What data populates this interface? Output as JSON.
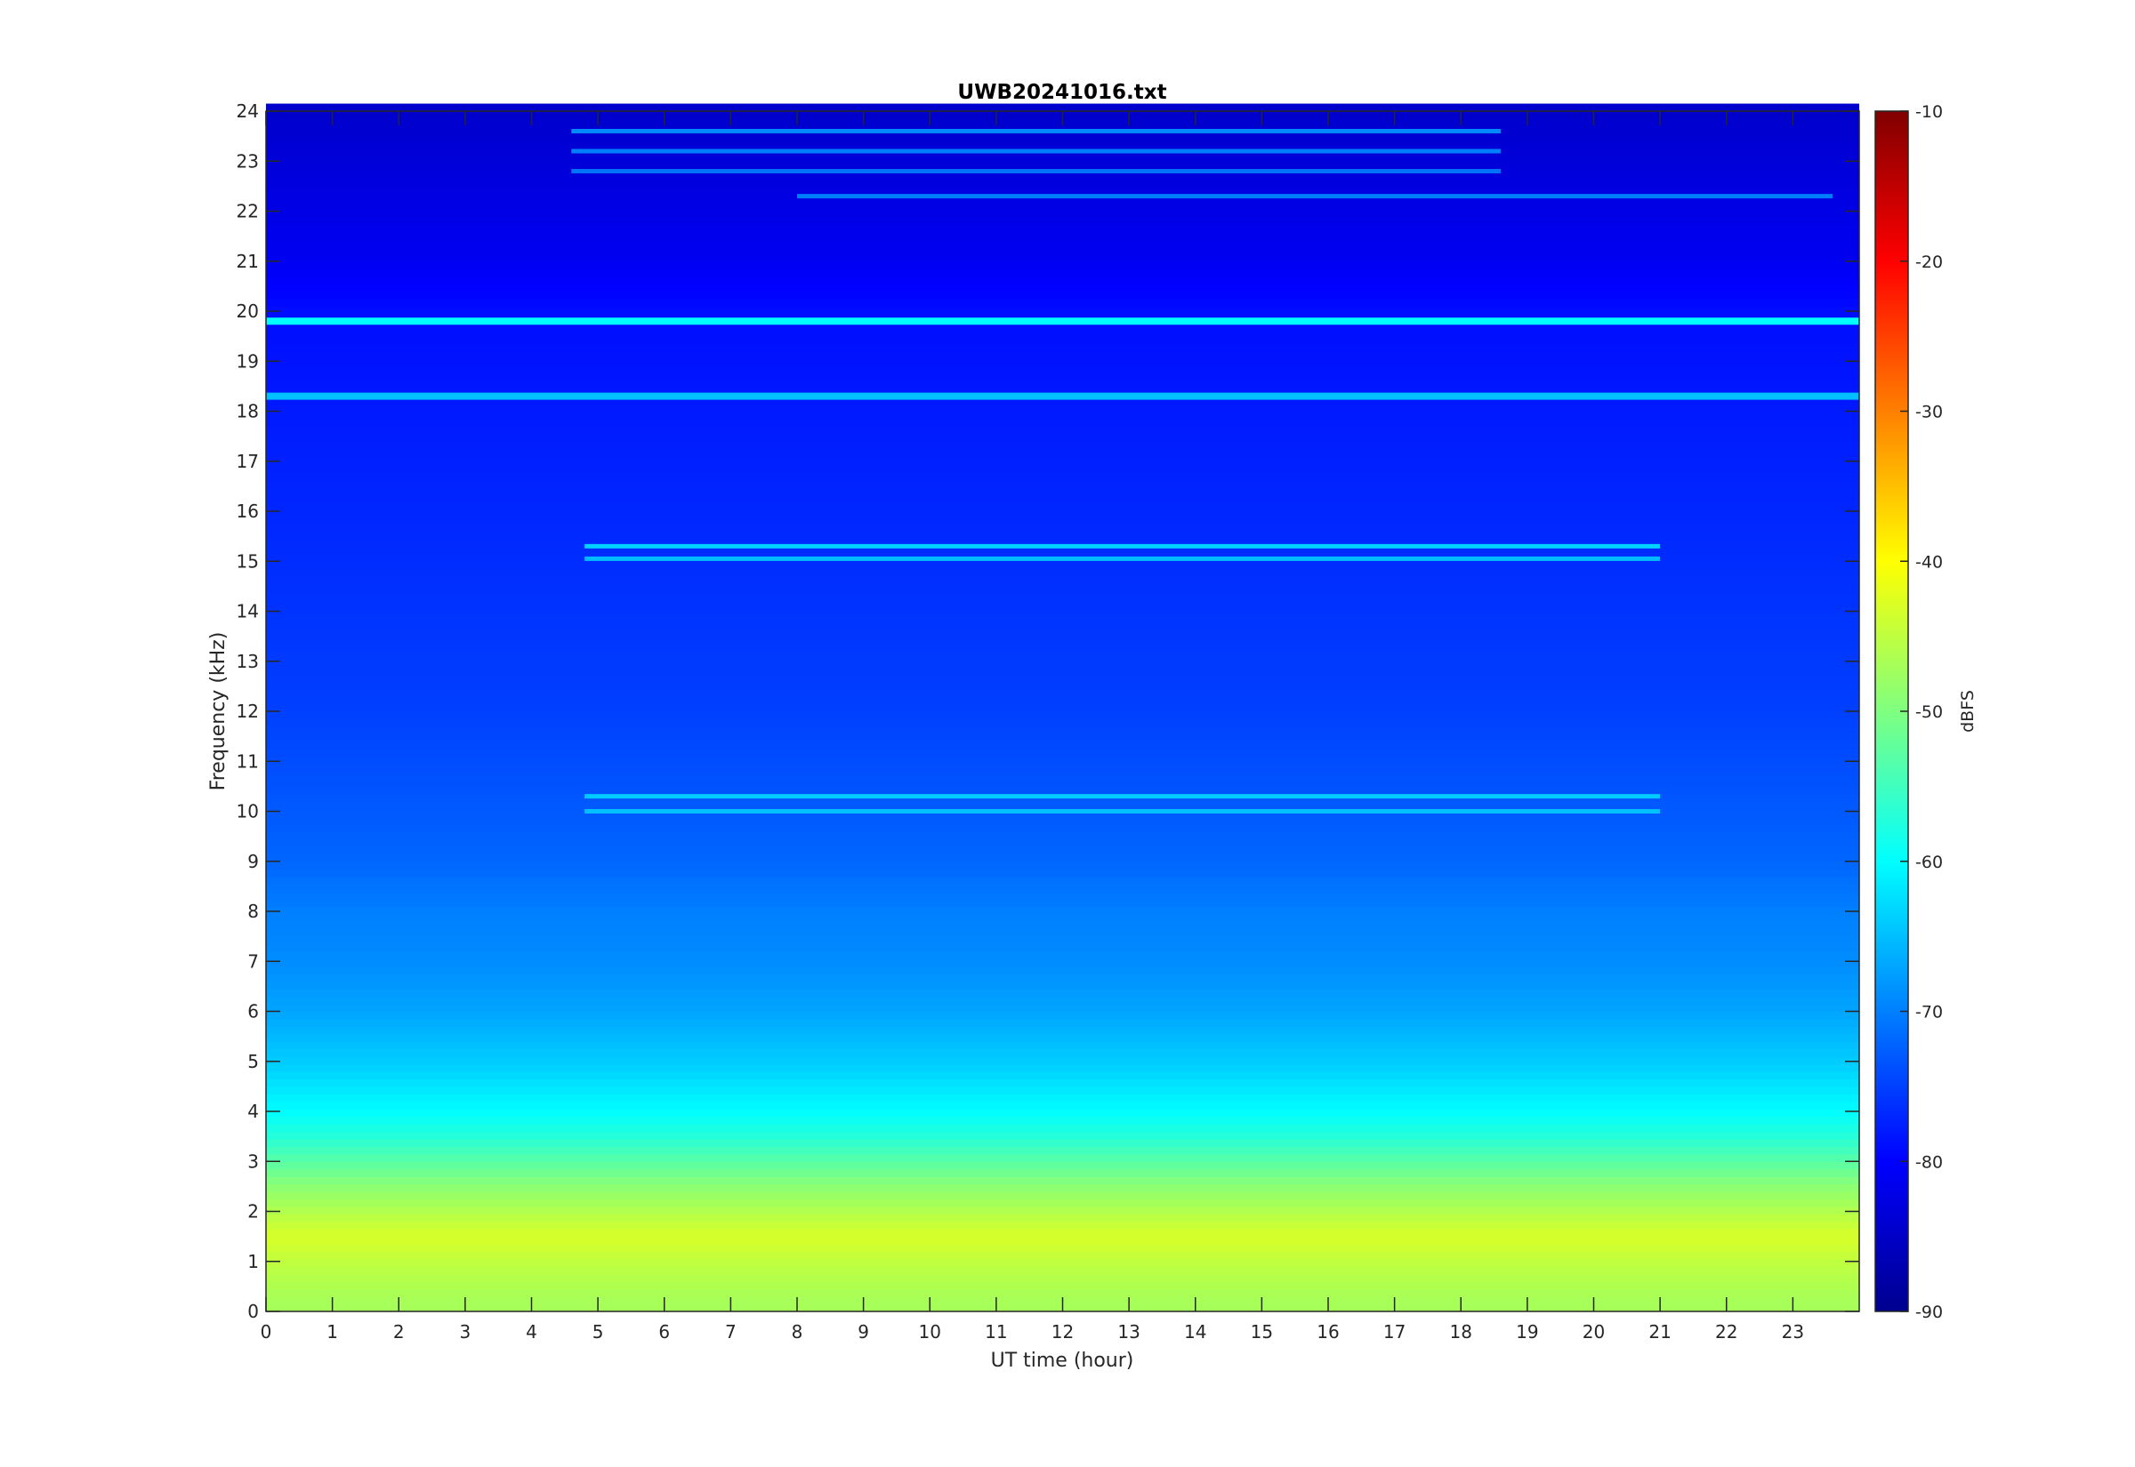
{
  "chart_data": {
    "type": "heatmap",
    "title": "UWB20241016.txt",
    "xlabel": "UT time (hour)",
    "ylabel": "Frequency (kHz)",
    "xlim": [
      0,
      24
    ],
    "ylim": [
      0,
      24
    ],
    "x_ticks": [
      "0",
      "1",
      "2",
      "3",
      "4",
      "5",
      "6",
      "7",
      "8",
      "9",
      "10",
      "11",
      "12",
      "13",
      "14",
      "15",
      "16",
      "17",
      "18",
      "19",
      "20",
      "21",
      "22",
      "23"
    ],
    "y_ticks": [
      "0",
      "1",
      "2",
      "3",
      "4",
      "5",
      "6",
      "7",
      "8",
      "9",
      "10",
      "11",
      "12",
      "13",
      "14",
      "15",
      "16",
      "17",
      "18",
      "19",
      "20",
      "21",
      "22",
      "23",
      "24"
    ],
    "colorbar": {
      "label": "dBFS",
      "range": [
        -90,
        -10
      ],
      "ticks": [
        "-90",
        "-80",
        "-70",
        "-60",
        "-50",
        "-40",
        "-30",
        "-20",
        "-10"
      ],
      "colormap": "jet"
    },
    "frequency_profile": [
      {
        "freq": 0.2,
        "dbfs": -47
      },
      {
        "freq": 0.6,
        "dbfs": -46
      },
      {
        "freq": 1.0,
        "dbfs": -45
      },
      {
        "freq": 1.5,
        "dbfs": -43
      },
      {
        "freq": 2.0,
        "dbfs": -46
      },
      {
        "freq": 2.5,
        "dbfs": -49
      },
      {
        "freq": 3.0,
        "dbfs": -53
      },
      {
        "freq": 3.5,
        "dbfs": -57
      },
      {
        "freq": 4.0,
        "dbfs": -60
      },
      {
        "freq": 4.5,
        "dbfs": -62
      },
      {
        "freq": 5.0,
        "dbfs": -64
      },
      {
        "freq": 6.0,
        "dbfs": -67
      },
      {
        "freq": 7.0,
        "dbfs": -69
      },
      {
        "freq": 8.0,
        "dbfs": -70
      },
      {
        "freq": 9.0,
        "dbfs": -72
      },
      {
        "freq": 10.0,
        "dbfs": -73
      },
      {
        "freq": 12.0,
        "dbfs": -75
      },
      {
        "freq": 14.0,
        "dbfs": -76
      },
      {
        "freq": 16.0,
        "dbfs": -77
      },
      {
        "freq": 18.0,
        "dbfs": -78
      },
      {
        "freq": 20.0,
        "dbfs": -79
      },
      {
        "freq": 21.0,
        "dbfs": -81
      },
      {
        "freq": 22.0,
        "dbfs": -82
      },
      {
        "freq": 24.0,
        "dbfs": -84
      }
    ],
    "persistent_lines": [
      {
        "freq": 19.8,
        "dbfs": -60
      },
      {
        "freq": 18.3,
        "dbfs": -65
      }
    ],
    "intermittent_lines": [
      {
        "freq": 15.3,
        "dbfs": -62,
        "start_hour": 4.8,
        "end_hour": 21.0
      },
      {
        "freq": 15.05,
        "dbfs": -64,
        "start_hour": 4.8,
        "end_hour": 21.0
      },
      {
        "freq": 10.3,
        "dbfs": -63,
        "start_hour": 4.8,
        "end_hour": 21.0
      },
      {
        "freq": 10.0,
        "dbfs": -64,
        "start_hour": 4.8,
        "end_hour": 21.0
      },
      {
        "freq": 23.6,
        "dbfs": -68,
        "start_hour": 4.6,
        "end_hour": 18.6
      },
      {
        "freq": 23.2,
        "dbfs": -69,
        "start_hour": 4.6,
        "end_hour": 18.6
      },
      {
        "freq": 22.8,
        "dbfs": -70,
        "start_hour": 4.6,
        "end_hour": 18.6
      },
      {
        "freq": 22.3,
        "dbfs": -69,
        "start_hour": 8.0,
        "end_hour": 23.6
      }
    ]
  }
}
